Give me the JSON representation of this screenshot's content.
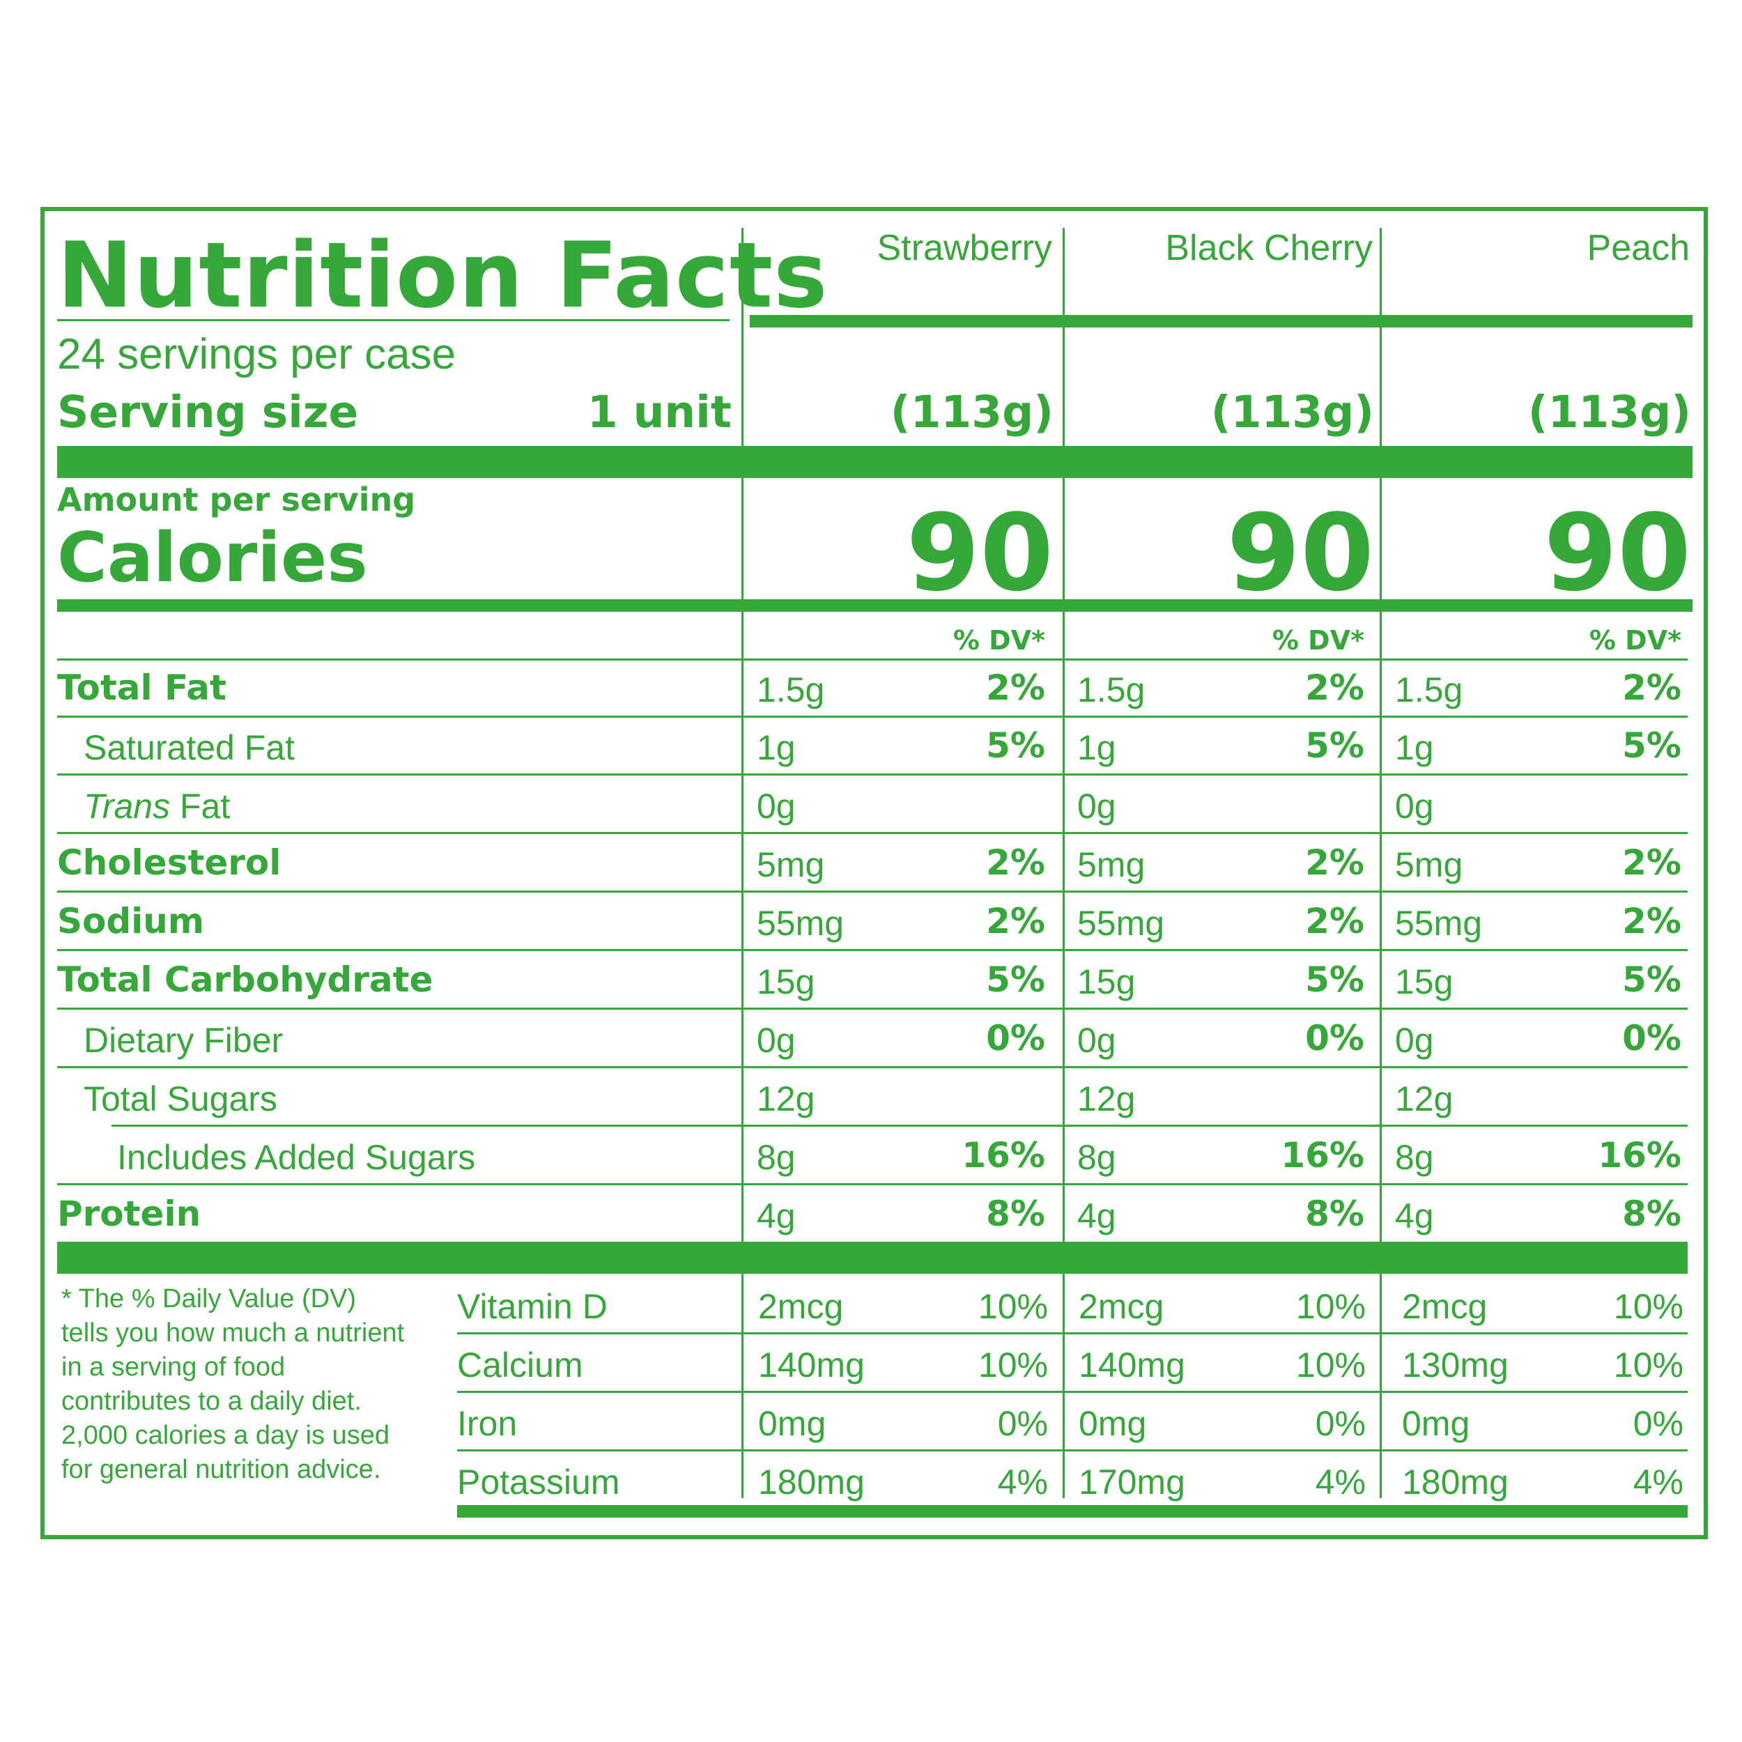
{
  "header": {
    "title": "Nutrition Facts",
    "servings_per": "24 servings per case",
    "serving_size_label": "Serving size",
    "serving_size_value": "1 unit",
    "amount_per_serving": "Amount per serving",
    "calories_label": "Calories",
    "dv_header": "% DV*"
  },
  "products": [
    {
      "name": "Strawberry",
      "serving_weight": "(113g)",
      "calories": "90"
    },
    {
      "name": "Black Cherry",
      "serving_weight": "(113g)",
      "calories": "90"
    },
    {
      "name": "Peach",
      "serving_weight": "(113g)",
      "calories": "90"
    }
  ],
  "nutrients": [
    {
      "label": "Total Fat",
      "values": [
        [
          "1.5g",
          "2%"
        ],
        [
          "1.5g",
          "2%"
        ],
        [
          "1.5g",
          "2%"
        ]
      ]
    },
    {
      "label": "Saturated Fat",
      "values": [
        [
          "1g",
          "5%"
        ],
        [
          "1g",
          "5%"
        ],
        [
          "1g",
          "5%"
        ]
      ]
    },
    {
      "label_italic": "Trans",
      "label_rest": " Fat",
      "values": [
        [
          "0g",
          ""
        ],
        [
          "0g",
          ""
        ],
        [
          "0g",
          ""
        ]
      ]
    },
    {
      "label": "Cholesterol",
      "values": [
        [
          "5mg",
          "2%"
        ],
        [
          "5mg",
          "2%"
        ],
        [
          "5mg",
          "2%"
        ]
      ]
    },
    {
      "label": "Sodium",
      "values": [
        [
          "55mg",
          "2%"
        ],
        [
          "55mg",
          "2%"
        ],
        [
          "55mg",
          "2%"
        ]
      ]
    },
    {
      "label": "Total Carbohydrate",
      "values": [
        [
          "15g",
          "5%"
        ],
        [
          "15g",
          "5%"
        ],
        [
          "15g",
          "5%"
        ]
      ]
    },
    {
      "label": "Dietary Fiber",
      "values": [
        [
          "0g",
          "0%"
        ],
        [
          "0g",
          "0%"
        ],
        [
          "0g",
          "0%"
        ]
      ]
    },
    {
      "label": "Total Sugars",
      "values": [
        [
          "12g",
          ""
        ],
        [
          "12g",
          ""
        ],
        [
          "12g",
          ""
        ]
      ]
    },
    {
      "label": "Includes Added Sugars",
      "values": [
        [
          "8g",
          "16%"
        ],
        [
          "8g",
          "16%"
        ],
        [
          "8g",
          "16%"
        ]
      ]
    },
    {
      "label": "Protein",
      "values": [
        [
          "4g",
          "8%"
        ],
        [
          "4g",
          "8%"
        ],
        [
          "4g",
          "8%"
        ]
      ]
    }
  ],
  "vitamins": [
    {
      "label": "Vitamin D",
      "values": [
        [
          "2mcg",
          "10%"
        ],
        [
          "2mcg",
          "10%"
        ],
        [
          "2mcg",
          "10%"
        ]
      ]
    },
    {
      "label": "Calcium",
      "values": [
        [
          "140mg",
          "10%"
        ],
        [
          "140mg",
          "10%"
        ],
        [
          "130mg",
          "10%"
        ]
      ]
    },
    {
      "label": "Iron",
      "values": [
        [
          "0mg",
          "0%"
        ],
        [
          "0mg",
          "0%"
        ],
        [
          "0mg",
          "0%"
        ]
      ]
    },
    {
      "label": "Potassium",
      "values": [
        [
          "180mg",
          "4%"
        ],
        [
          "170mg",
          "4%"
        ],
        [
          "180mg",
          "4%"
        ]
      ]
    }
  ],
  "footnote": "* The % Daily Value (DV) tells you how much a nutrient in a serving of food contributes to a daily diet. 2,000 calories a day is used for general nutrition advice.",
  "colors": {
    "label_green": "#36a83a",
    "background": "#ffffff"
  }
}
